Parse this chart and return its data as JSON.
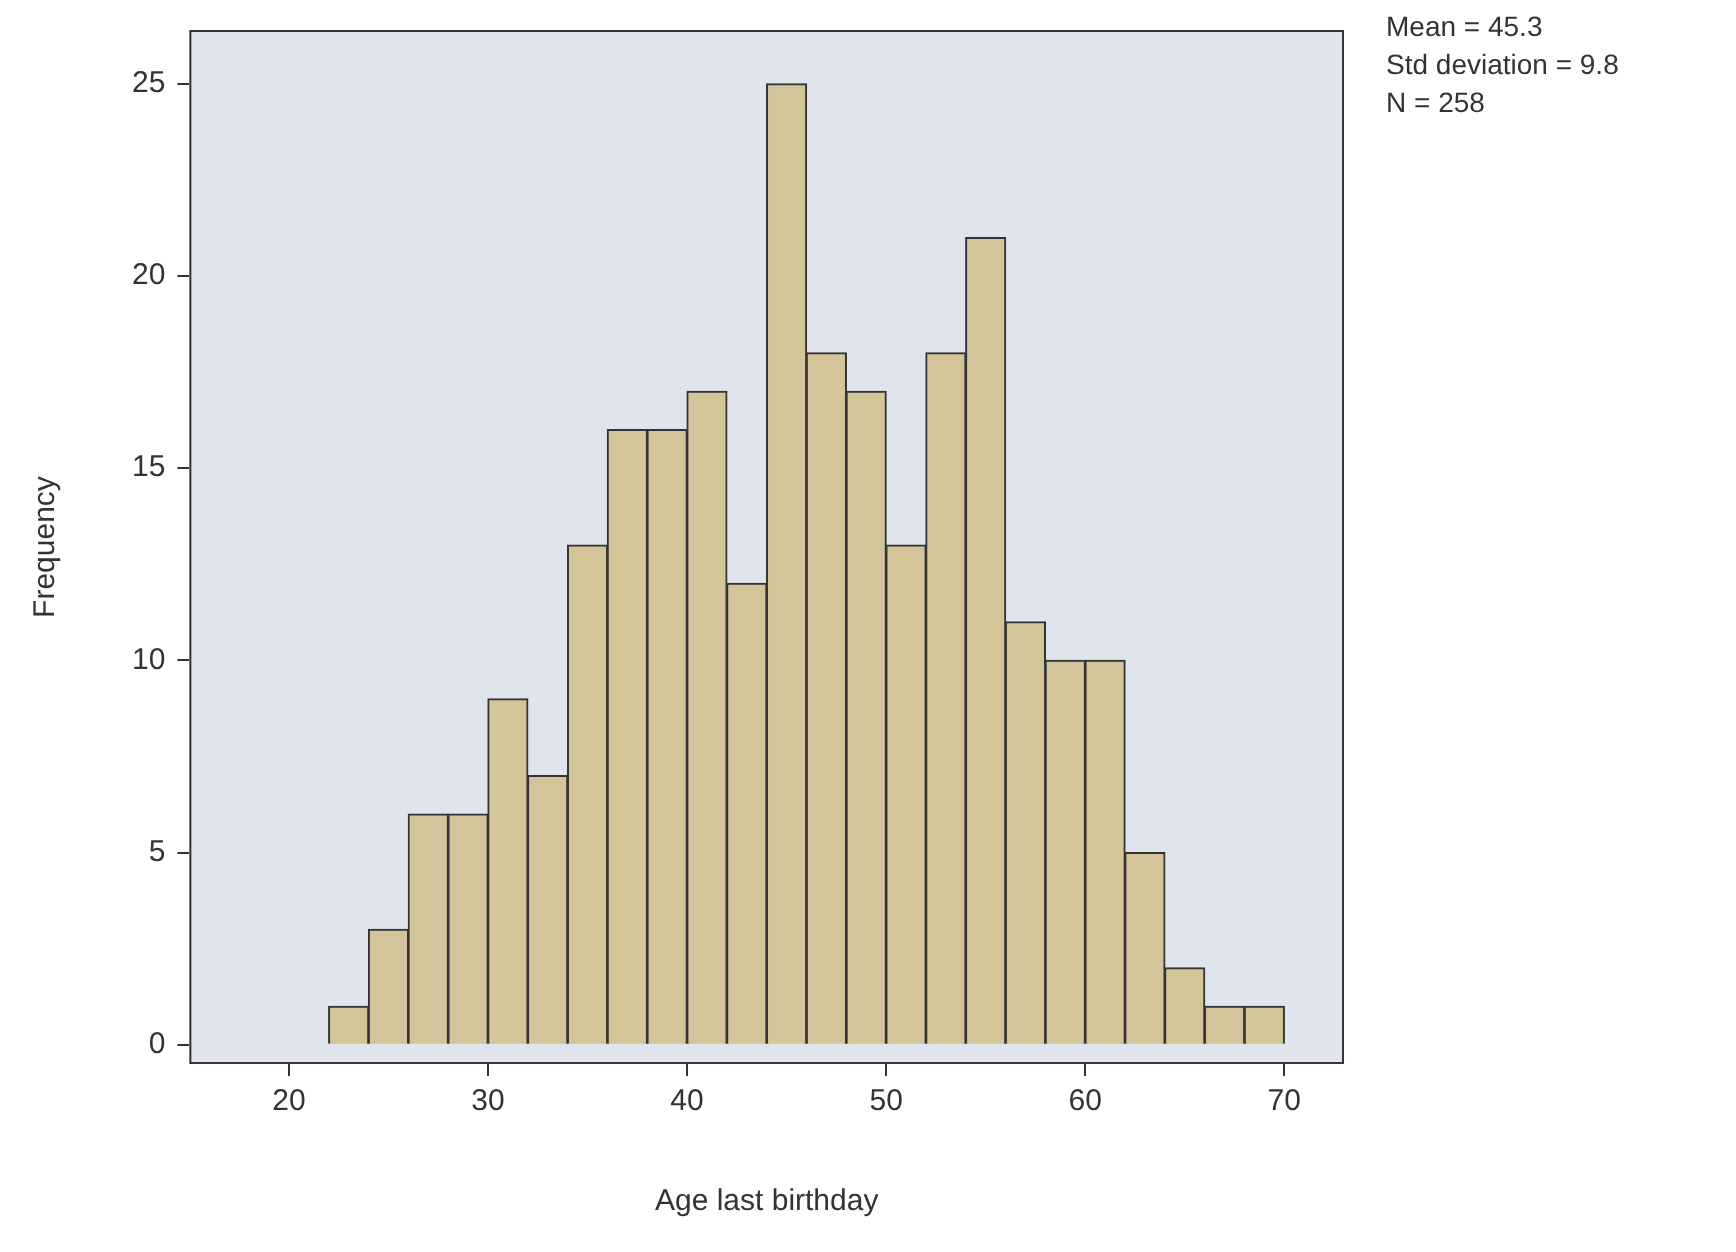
{
  "chart_data": {
    "type": "histogram",
    "xlabel": "Age last birthday",
    "ylabel": "Frequency",
    "bins": [
      22,
      24,
      26,
      28,
      30,
      32,
      34,
      36,
      38,
      40,
      42,
      44,
      46,
      48,
      50,
      52,
      54,
      56,
      58,
      60,
      62,
      64,
      66,
      68,
      70
    ],
    "values": [
      1,
      3,
      6,
      6,
      9,
      7,
      13,
      16,
      16,
      17,
      12,
      25,
      18,
      17,
      13,
      18,
      21,
      11,
      10,
      10,
      5,
      2,
      1,
      1
    ],
    "color": "#d3c49a",
    "xlim": [
      15,
      73
    ],
    "xticks": [
      20,
      30,
      40,
      50,
      60,
      70
    ],
    "ylim": [
      -0.5,
      26.4
    ],
    "yticks": [
      0,
      5,
      10,
      15,
      20,
      25
    ],
    "grid": false,
    "legend": false,
    "annotations": [
      "Mean = 45.3",
      "Std deviation = 9.8",
      "N = 258"
    ]
  }
}
